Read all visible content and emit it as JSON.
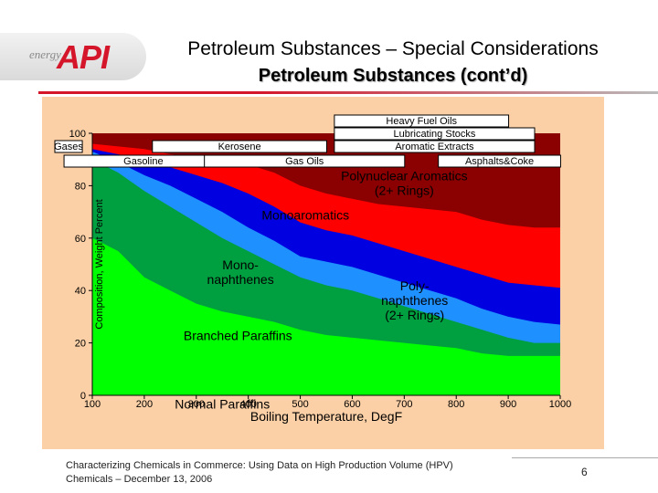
{
  "header": {
    "logo_small": "energy",
    "logo_brand": "API",
    "title": "Petroleum Substances – Special Considerations",
    "subtitle": "Petroleum Substances (cont’d)"
  },
  "footer": {
    "line1": "Characterizing Chemicals in Commerce: Using Data on High Production Volume (HPV)",
    "line2": "Chemicals – December 13, 2006",
    "page_number": "6"
  },
  "chart_data": {
    "type": "area",
    "xlabel": "Boiling Temperature, DegF",
    "ylabel": "Composition, Weight Percent",
    "xlim": [
      100,
      1000
    ],
    "ylim": [
      0,
      100
    ],
    "x_ticks": [
      "100",
      "200",
      "300",
      "400",
      "500",
      "600",
      "700",
      "800",
      "900",
      "1000"
    ],
    "y_ticks": [
      "0",
      "20",
      "40",
      "60",
      "80",
      "100"
    ],
    "x": [
      100,
      150,
      200,
      250,
      300,
      350,
      400,
      450,
      500,
      550,
      600,
      650,
      700,
      750,
      800,
      850,
      900,
      950,
      1000
    ],
    "series": [
      {
        "name": "Normal Paraffins",
        "color": "#00ff00",
        "values": [
          60,
          55,
          45,
          40,
          35,
          32,
          30,
          28,
          25,
          23,
          22,
          21,
          20,
          19,
          18,
          16,
          15,
          15,
          15
        ]
      },
      {
        "name": "Branched Paraffins",
        "color": "#00a040",
        "values": [
          90,
          85,
          78,
          72,
          66,
          60,
          55,
          50,
          45,
          42,
          40,
          37,
          34,
          31,
          28,
          25,
          22,
          20,
          20
        ]
      },
      {
        "name": "Mono-naphthenes",
        "color": "#1e90ff",
        "values": [
          93,
          89,
          84,
          80,
          75,
          70,
          64,
          59,
          53,
          51,
          49,
          46,
          43,
          40,
          37,
          33,
          30,
          28,
          27
        ]
      },
      {
        "name": "Poly-naphthenes (2+ Rings)",
        "color": "#0000e0",
        "values": [
          94,
          92,
          90,
          87,
          84,
          81,
          77,
          72,
          66,
          63,
          61,
          58,
          55,
          52,
          49,
          46,
          43,
          42,
          41
        ]
      },
      {
        "name": "Monoaromatics",
        "color": "#ff0000",
        "values": [
          96,
          95,
          94,
          92,
          91,
          90,
          88,
          85,
          80,
          77,
          75,
          73,
          72,
          71,
          70,
          67,
          65,
          64,
          64
        ]
      },
      {
        "name": "Polynuclear Aromatics (2+ Rings)",
        "color": "#8b0000",
        "values": [
          100,
          100,
          100,
          100,
          100,
          100,
          100,
          100,
          100,
          100,
          100,
          100,
          100,
          100,
          100,
          100,
          100,
          100,
          100
        ]
      }
    ],
    "region_labels": [
      {
        "text": "Polynuclear Aromatics",
        "text2": "(2+ Rings)",
        "x": 700,
        "y": 82
      },
      {
        "text": "Monoaromatics",
        "text2": "",
        "x": 510,
        "y": 67
      },
      {
        "text": "Mono-",
        "text2": "naphthenes",
        "x": 385,
        "y": 48
      },
      {
        "text": "Poly-",
        "text2": "naphthenes",
        "text3": "(2+ Rings)",
        "x": 720,
        "y": 40
      },
      {
        "text": "Branched Paraffins",
        "text2": "",
        "x": 380,
        "y": 21
      },
      {
        "text": "Normal Paraffins",
        "text2": "",
        "x": 350,
        "y": -5
      }
    ],
    "product_ranges": [
      {
        "label": "Gases",
        "x_start": 0,
        "x_end": 130,
        "row": 1
      },
      {
        "label": "Gasoline",
        "x_start": 130,
        "x_end": 400,
        "row": 0
      },
      {
        "label": "Kerosene",
        "x_start": 300,
        "x_end": 600,
        "row": 1
      },
      {
        "label": "Gas Oils",
        "x_start": 400,
        "x_end": 750,
        "row": 0
      },
      {
        "label": "Aromatic Extracts",
        "x_start": 650,
        "x_end": 1000,
        "row": 1
      },
      {
        "label": "Asphalts&Coke",
        "x_start": 850,
        "x_end": 1050,
        "row": 0
      },
      {
        "label": "Lubricating Stocks",
        "x_start": 650,
        "x_end": 1000,
        "row": 2
      },
      {
        "label": "Heavy Fuel Oils",
        "x_start": 650,
        "x_end": 950,
        "row": 3
      }
    ]
  }
}
